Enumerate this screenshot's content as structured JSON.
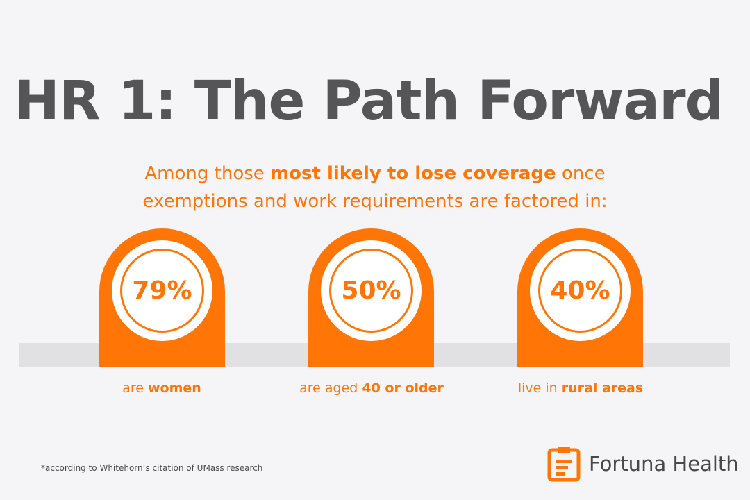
{
  "title": "HR 1: The Path Forward",
  "subtitle": {
    "prefix": "Among those ",
    "emphasis": "most likely to lose coverage",
    "suffix": " once exemptions and work requirements are factored in:"
  },
  "stats": [
    {
      "value": "79%",
      "caption_prefix": "are ",
      "caption_emphasis": "women"
    },
    {
      "value": "50%",
      "caption_prefix": "are aged ",
      "caption_emphasis": "40 or older"
    },
    {
      "value": "40%",
      "caption_prefix": "live in ",
      "caption_emphasis": "rural areas"
    }
  ],
  "footnote": "*according to Whitehorn’s citation of UMass research",
  "brand": {
    "name": "Fortuna Health",
    "icon": "clipboard-icon"
  },
  "colors": {
    "accent": "#ff7506",
    "title": "#555558",
    "background": "#f5f4f6",
    "band": "#e1e0e3"
  }
}
